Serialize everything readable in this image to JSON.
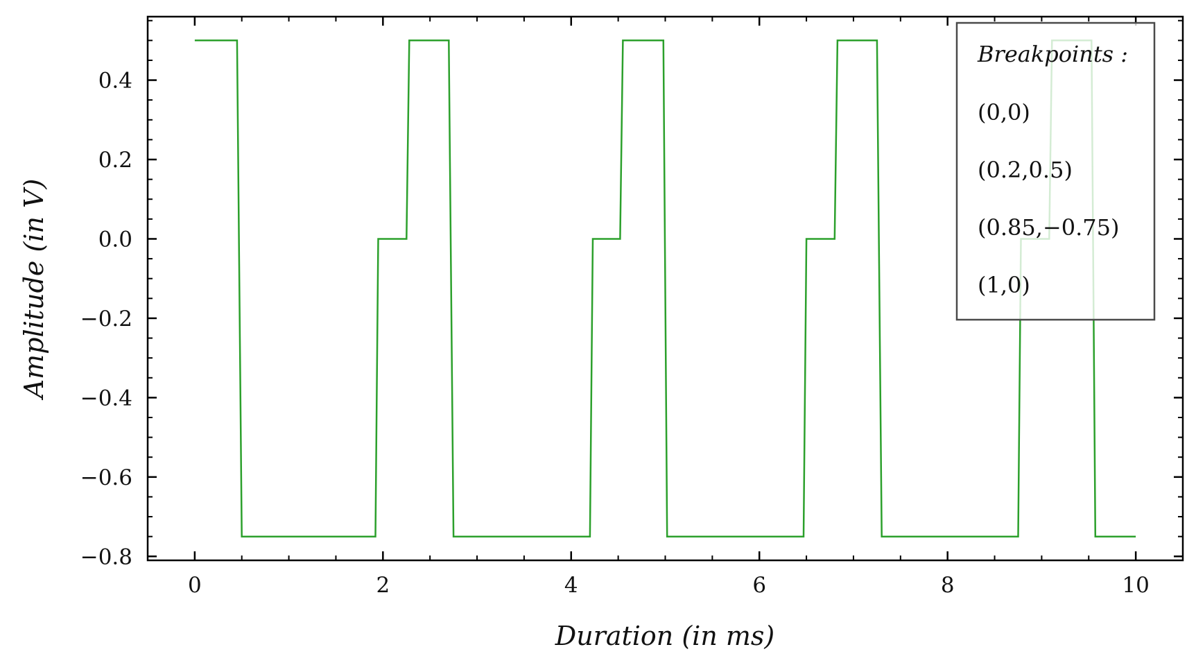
{
  "chart_data": {
    "type": "line",
    "title": "",
    "xlabel": "Duration (in ms)",
    "ylabel": "Amplitude (in V)",
    "xlim": [
      -0.5,
      10.5
    ],
    "ylim": [
      -0.81,
      0.56
    ],
    "x_ticks": [
      0,
      2,
      4,
      6,
      8,
      10
    ],
    "x_tick_labels": [
      "0",
      "2",
      "4",
      "6",
      "8",
      "10"
    ],
    "y_ticks": [
      0.4,
      0.2,
      0.0,
      -0.2,
      -0.4,
      -0.6,
      -0.8
    ],
    "y_tick_labels": [
      "0.4",
      "0.2",
      "0.0",
      "−0.2",
      "−0.4",
      "−0.6",
      "−0.8"
    ],
    "grid": false,
    "legend_position": "top-right",
    "legend": {
      "title": "Breakpoints :",
      "entries": [
        "(0,0)",
        "(0.2,0.5)",
        "(0.85,−0.75)",
        "(1,0)"
      ]
    },
    "series": [
      {
        "color": "#2ca02c",
        "x": [
          0,
          0.45,
          0.5,
          1.92,
          1.95,
          2.25,
          2.28,
          2.7,
          2.75,
          4.2,
          4.23,
          4.52,
          4.55,
          4.98,
          5.02,
          6.47,
          6.5,
          6.8,
          6.83,
          7.25,
          7.3,
          8.75,
          8.78,
          9.08,
          9.11,
          9.53,
          9.57,
          10.0
        ],
        "y": [
          0.5,
          0.5,
          -0.75,
          -0.75,
          0.0,
          0.0,
          0.5,
          0.5,
          -0.75,
          -0.75,
          0.0,
          0.0,
          0.5,
          0.5,
          -0.75,
          -0.75,
          0.0,
          0.0,
          0.5,
          0.5,
          -0.75,
          -0.75,
          0.0,
          0.0,
          0.5,
          0.5,
          -0.75,
          -0.75
        ]
      }
    ]
  }
}
